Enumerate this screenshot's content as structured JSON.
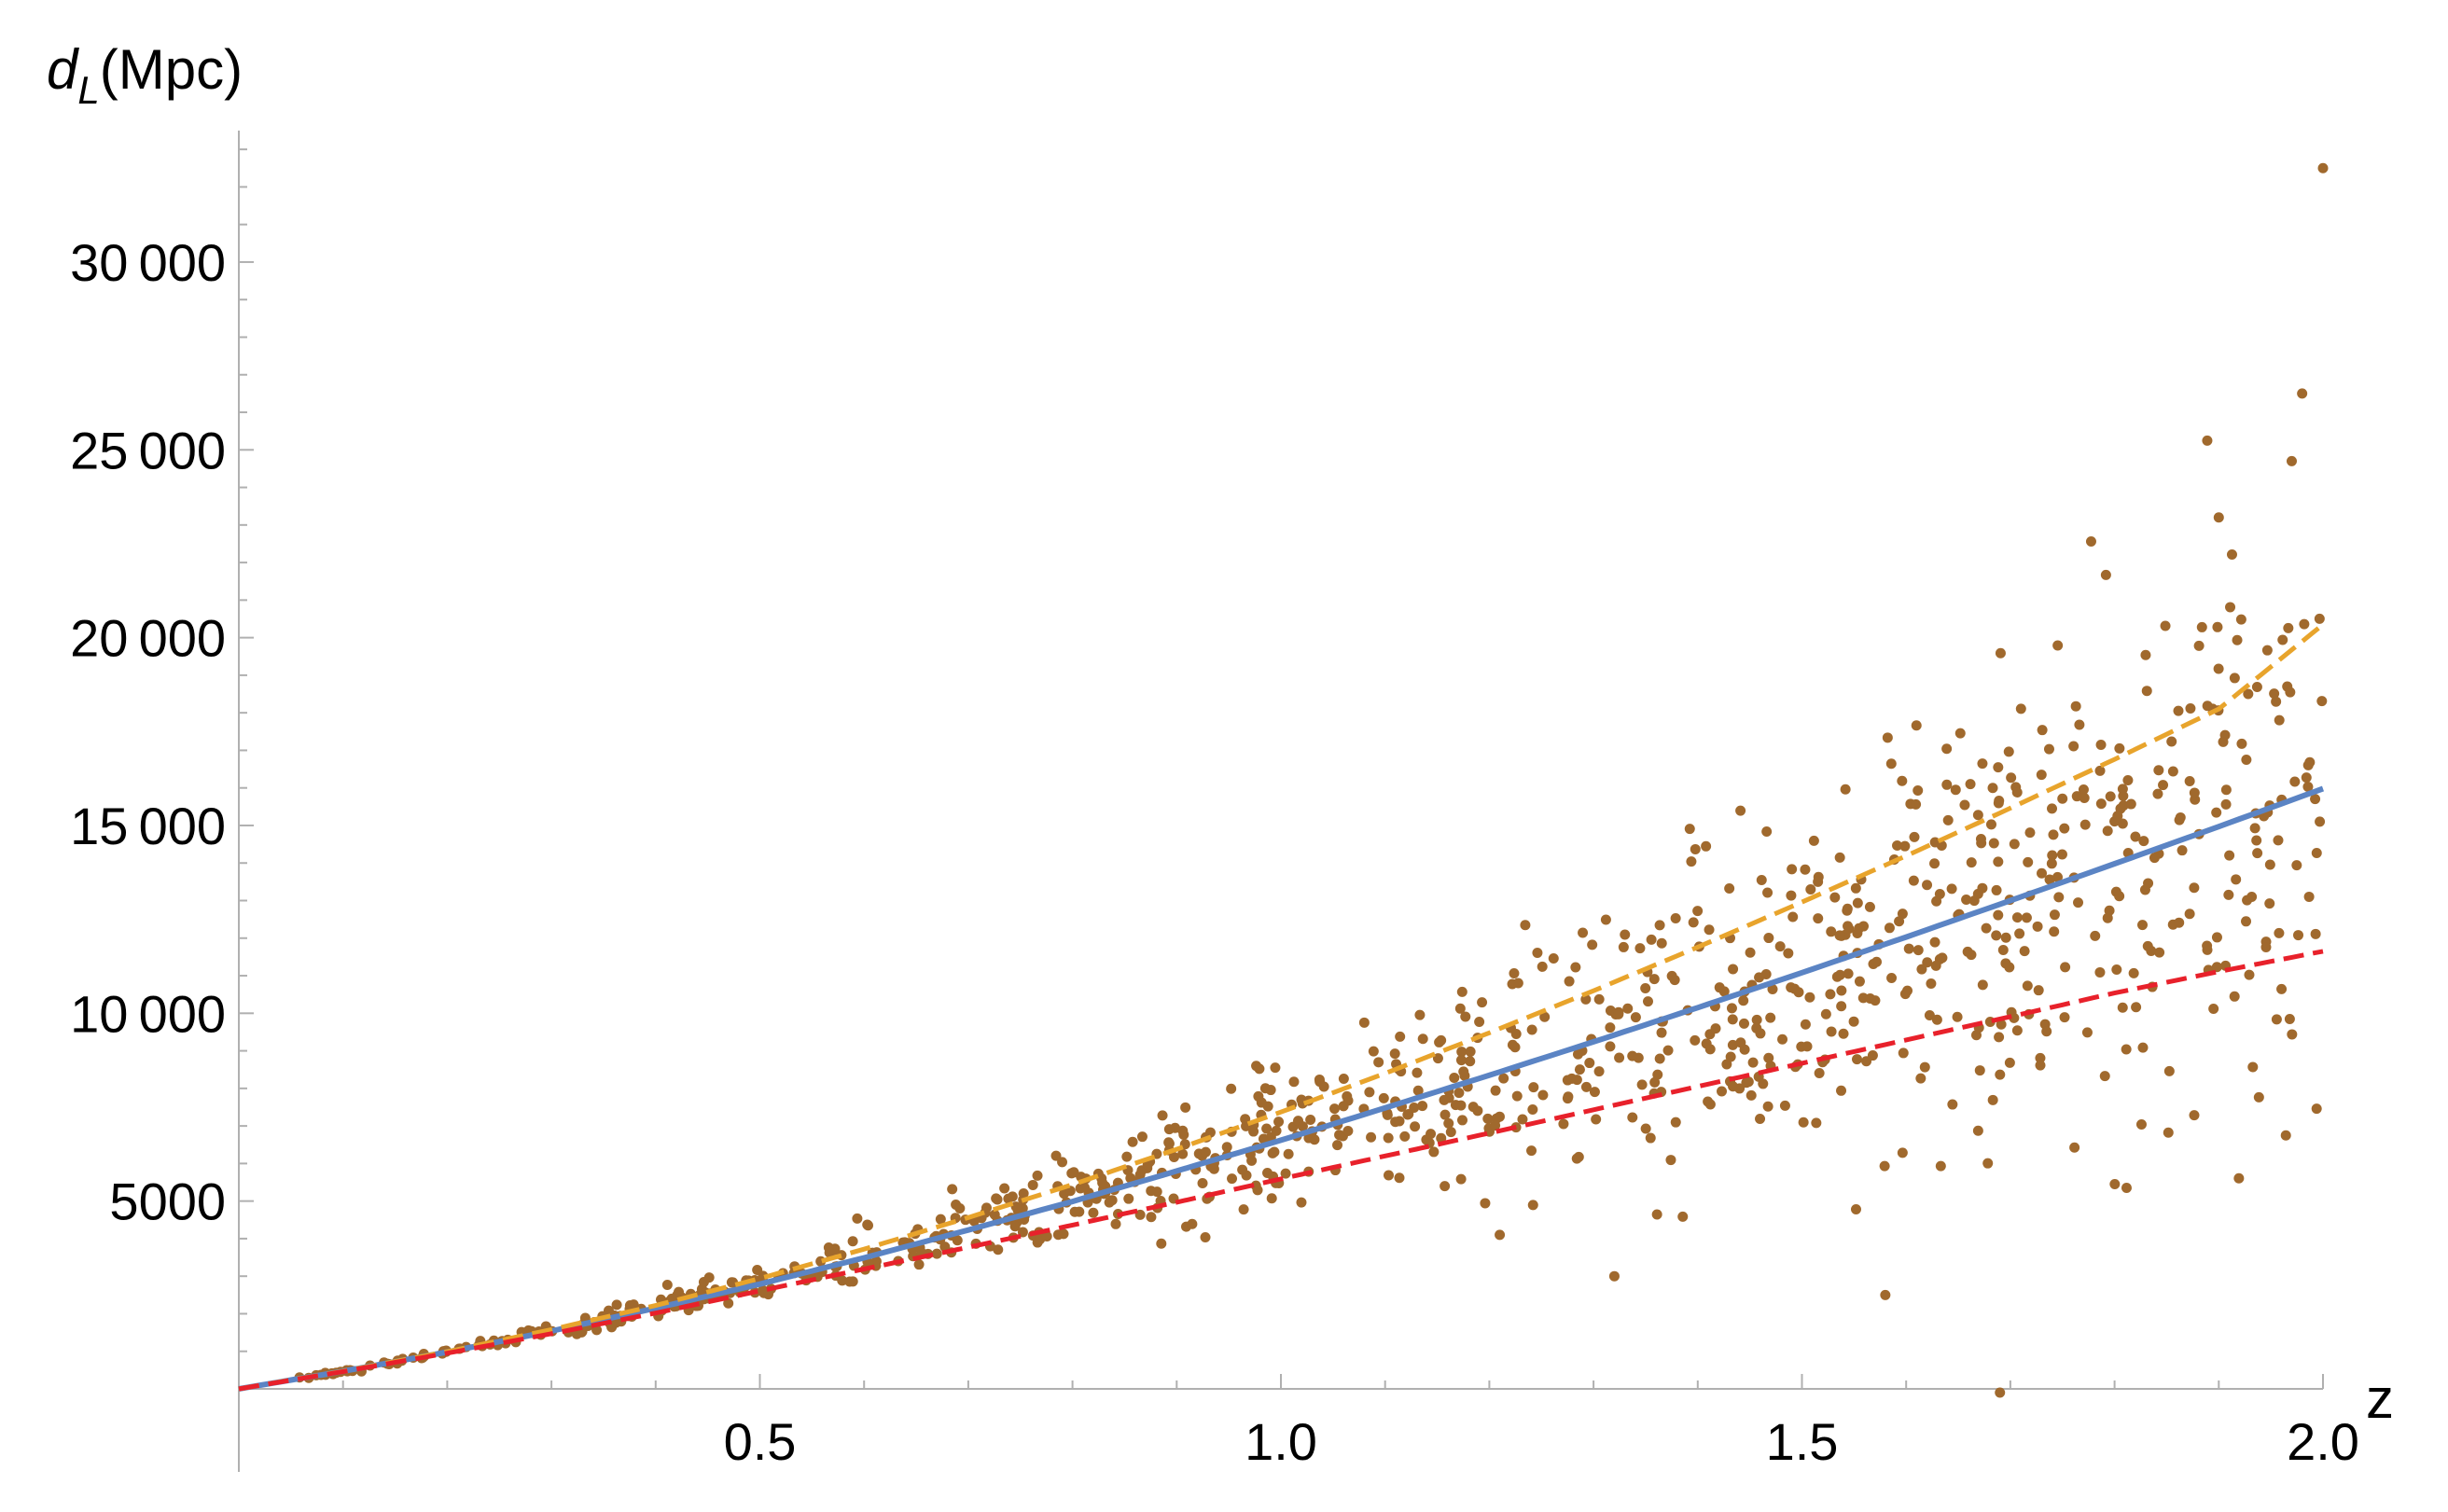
{
  "chart_data": {
    "type": "scatter",
    "ylabel_main": "d",
    "ylabel_sub": "L",
    "ylabel_unit": "(Mpc)",
    "xlabel": "z",
    "xlim": [
      0,
      2.0
    ],
    "ylim": [
      0,
      33500
    ],
    "x_ticks": [
      {
        "value": 0.5,
        "label": "0.5"
      },
      {
        "value": 1.0,
        "label": "1.0"
      },
      {
        "value": 1.5,
        "label": "1.5"
      },
      {
        "value": 2.0,
        "label": "2.0"
      }
    ],
    "y_ticks": [
      {
        "value": 5000,
        "label": "5000"
      },
      {
        "value": 10000,
        "label": "10 000"
      },
      {
        "value": 15000,
        "label": "15 000"
      },
      {
        "value": 20000,
        "label": "20 000"
      },
      {
        "value": 25000,
        "label": "25 000"
      },
      {
        "value": 30000,
        "label": "30 000"
      }
    ],
    "grid": false,
    "legend": "none",
    "series": [
      {
        "type": "line",
        "style": "solid",
        "color": "#5B84C4",
        "x": [
          0,
          0.1,
          0.2,
          0.3,
          0.4,
          0.5,
          0.6,
          0.7,
          0.8,
          0.9,
          1.0,
          1.1,
          1.2,
          1.3,
          1.4,
          1.5,
          1.6,
          1.7,
          1.8,
          1.9,
          2.0
        ],
        "y": [
          0,
          470,
          980,
          1540,
          2150,
          2790,
          3490,
          4230,
          4990,
          5800,
          6620,
          7480,
          8350,
          9240,
          10150,
          11080,
          12030,
          13000,
          13980,
          14970,
          15980
        ]
      },
      {
        "type": "line",
        "style": "dashed",
        "color": "#E8A42C",
        "x": [
          0,
          0.1,
          0.2,
          0.3,
          0.4,
          0.5,
          0.6,
          0.7,
          0.8,
          0.9,
          1.0,
          1.1,
          1.2,
          1.3,
          1.4,
          1.5,
          1.6,
          1.7,
          1.8,
          1.9,
          2.0
        ],
        "y": [
          0,
          470,
          990,
          1580,
          2220,
          2940,
          3720,
          4560,
          5440,
          6380,
          7370,
          8400,
          9480,
          10600,
          11760,
          12960,
          14190,
          15460,
          16760,
          18100,
          20350
        ]
      },
      {
        "type": "line",
        "style": "dashed",
        "color": "#E8212B",
        "x": [
          0,
          0.1,
          0.2,
          0.3,
          0.4,
          0.5,
          0.6,
          0.7,
          0.8,
          0.9,
          1.0,
          1.1,
          1.2,
          1.3,
          1.4,
          1.5,
          1.6,
          1.7,
          1.8,
          1.9,
          2.0
        ],
        "y": [
          0,
          460,
          950,
          1470,
          2020,
          2610,
          3190,
          3770,
          4360,
          4970,
          5590,
          6200,
          6810,
          7430,
          8050,
          8670,
          9290,
          9910,
          10540,
          11110,
          11650
        ]
      },
      {
        "type": "scatter",
        "color": "#A0692D",
        "n_points": 1000,
        "x_range": [
          0.05,
          2.0
        ],
        "y_mean": "follows solid curve",
        "outliers": [
          {
            "x": 2.0,
            "y": 32500
          },
          {
            "x": 1.98,
            "y": 26500
          },
          {
            "x": 1.97,
            "y": 24700
          },
          {
            "x": 1.9,
            "y": 23200
          },
          {
            "x": 1.58,
            "y": 2500
          },
          {
            "x": 1.69,
            "y": -100
          },
          {
            "x": 1.32,
            "y": 3000
          },
          {
            "x": 1.21,
            "y": 4100
          }
        ]
      }
    ]
  }
}
